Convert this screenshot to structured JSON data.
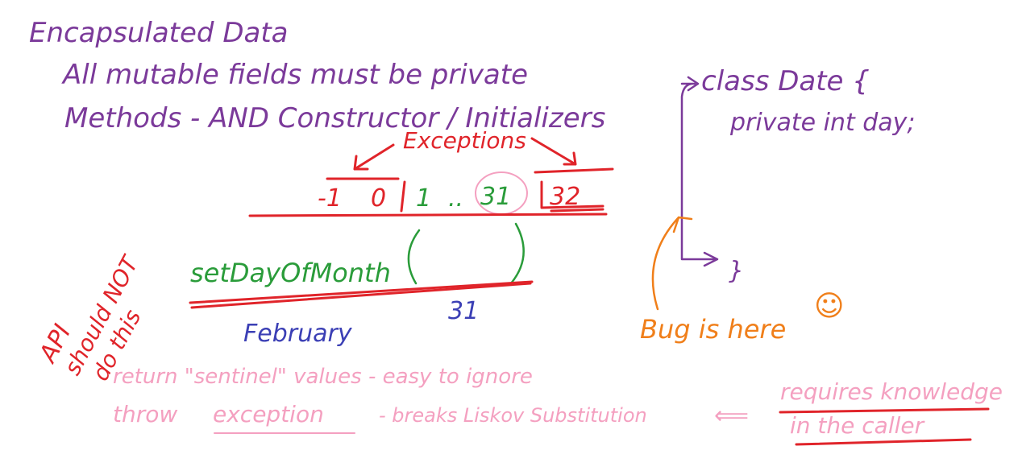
{
  "notes": {
    "heading": "Encapsulated Data",
    "line1": "All mutable fields must be private",
    "line2": "Methods - AND Constructor / Initializers",
    "exceptions_label": "Exceptions",
    "value_neg1": "-1",
    "value_0": "0",
    "value_1": "1",
    "range_dots": "..",
    "value_31": "31",
    "value_32": "32",
    "method_call": "setDayOfMonth",
    "arg_31": "31",
    "month_label": "February",
    "api_note_line1": "API",
    "api_note_line2": "should NOT",
    "api_note_line3": "do this",
    "class_decl": "class Date {",
    "field_decl": "private int day;",
    "closing_brace": "}",
    "bug_note": "Bug is here",
    "smiley": "☺",
    "sentinel_line": "return \"sentinel\" values - easy to ignore",
    "exception_word": "exception",
    "throw_line_prefix": "throw",
    "throw_line_suffix": "- breaks Liskov Substitution",
    "caller_arrow": "⟸",
    "caller_note_line1": "requires knowledge",
    "caller_note_line2": "in the caller"
  },
  "colors": {
    "purple": "#7b3a9a",
    "red": "#e0242a",
    "green": "#2a9c3a",
    "blue": "#3b3fb5",
    "orange": "#f07f1a",
    "pink": "#f4a0c0"
  }
}
